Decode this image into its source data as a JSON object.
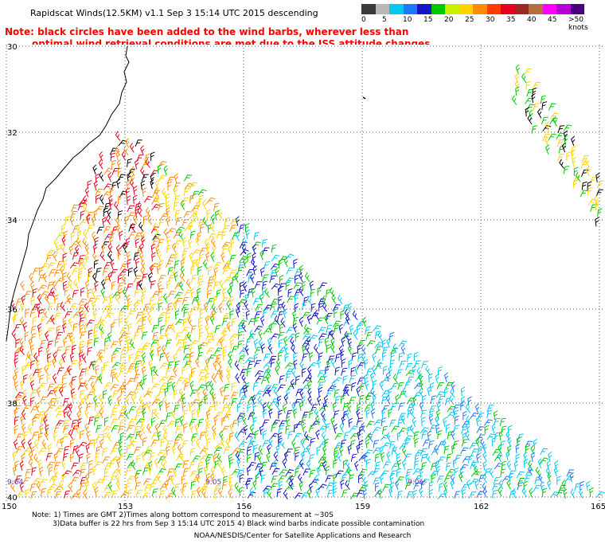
{
  "header": {
    "title": "Rapidscat Winds(12.5KM) v1.1 Sep  3 15:14 UTC 2015 descending",
    "note_line1": "Note: black circles have been added to the wind barbs, wherever less than",
    "note_line2": "optimal wind retrieval conditions are met due to the ISS attitude changes."
  },
  "color_scale": {
    "labels": [
      "0",
      "5",
      "10",
      "15",
      "20",
      "25",
      "30",
      "35",
      "40",
      "45",
      ">50 knots"
    ],
    "colors": [
      "#3a3a3a",
      "#b8b8b8",
      "#00c8f0",
      "#1e78ff",
      "#1414c8",
      "#00c800",
      "#c8f000",
      "#ffd200",
      "#ff8c00",
      "#ff3c00",
      "#e6001e",
      "#9c2828",
      "#b86e3c",
      "#ff00ff",
      "#b400d2",
      "#4b0082"
    ]
  },
  "map": {
    "lat_labels": [
      "30",
      "32",
      "34",
      "36",
      "38",
      "40"
    ],
    "lon_labels": [
      "150",
      "153",
      "156",
      "159",
      "162",
      "165"
    ],
    "time_labels": [
      "9:04",
      "9:05",
      "9:06"
    ]
  },
  "footer": {
    "line1": "Note: 1) Times are GMT 2)Times along bottom correspond to measurement at ~30S",
    "line2": "3)Data buffer is 22 hrs from Sep  3 15:14 UTC 2015 4) Black wind barbs indicate possible contamination",
    "line3": "NOAA/NESDIS/Center for Satellite Applications and Research"
  }
}
